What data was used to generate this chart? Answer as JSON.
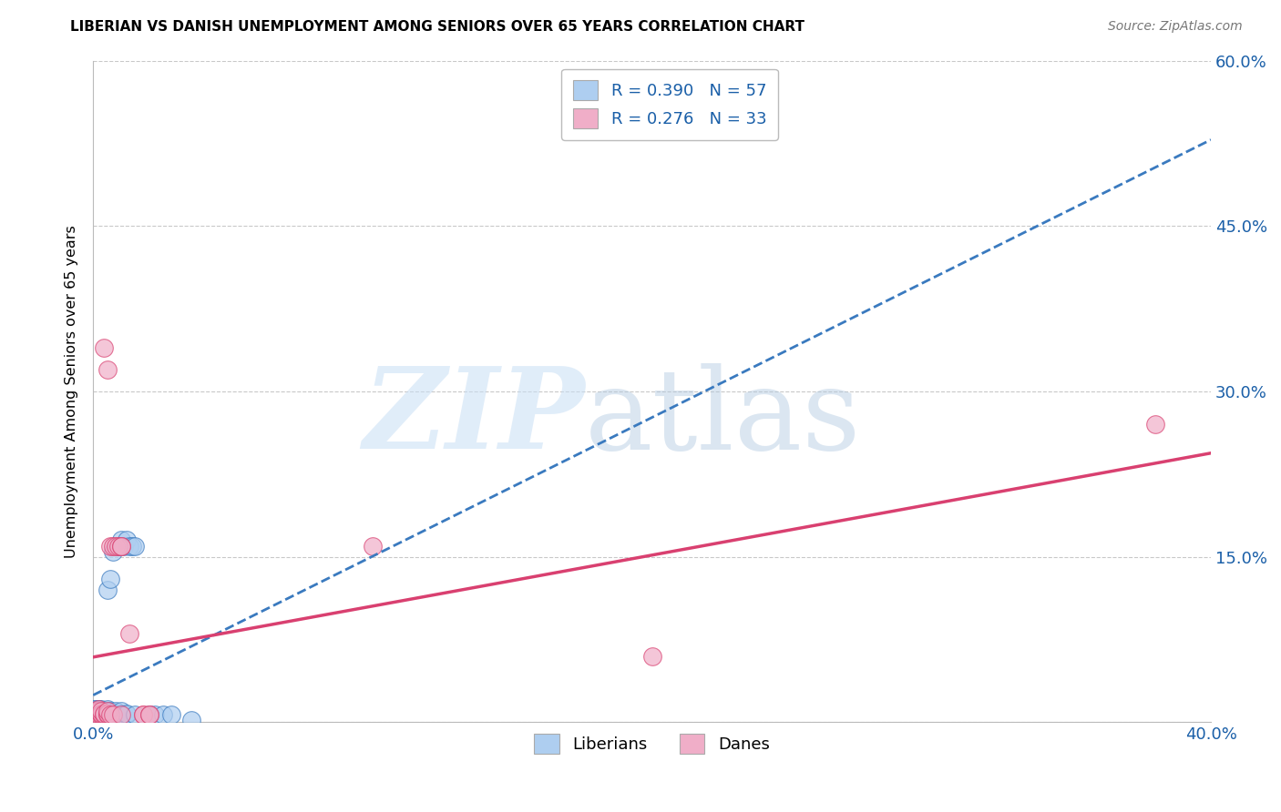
{
  "title": "LIBERIAN VS DANISH UNEMPLOYMENT AMONG SENIORS OVER 65 YEARS CORRELATION CHART",
  "source": "Source: ZipAtlas.com",
  "ylabel": "Unemployment Among Seniors over 65 years",
  "xlim": [
    0.0,
    0.4
  ],
  "ylim": [
    0.0,
    0.6
  ],
  "ytick_positions": [
    0.0,
    0.15,
    0.3,
    0.45,
    0.6
  ],
  "xtick_positions": [
    0.0,
    0.1,
    0.2,
    0.3,
    0.4
  ],
  "liberian_R": 0.39,
  "liberian_N": 57,
  "danish_R": 0.276,
  "danish_N": 33,
  "liberian_color": "#aecef0",
  "danish_color": "#f0aec8",
  "liberian_trend_color": "#3a7abf",
  "danish_trend_color": "#d94070",
  "liberian_points": [
    [
      0.0,
      0.01
    ],
    [
      0.0,
      0.01
    ],
    [
      0.0,
      0.012
    ],
    [
      0.001,
      0.008
    ],
    [
      0.001,
      0.01
    ],
    [
      0.001,
      0.01
    ],
    [
      0.001,
      0.012
    ],
    [
      0.002,
      0.007
    ],
    [
      0.002,
      0.008
    ],
    [
      0.002,
      0.01
    ],
    [
      0.002,
      0.01
    ],
    [
      0.002,
      0.01
    ],
    [
      0.002,
      0.012
    ],
    [
      0.002,
      0.012
    ],
    [
      0.003,
      0.007
    ],
    [
      0.003,
      0.008
    ],
    [
      0.003,
      0.008
    ],
    [
      0.003,
      0.01
    ],
    [
      0.003,
      0.01
    ],
    [
      0.003,
      0.012
    ],
    [
      0.004,
      0.007
    ],
    [
      0.004,
      0.008
    ],
    [
      0.004,
      0.01
    ],
    [
      0.004,
      0.01
    ],
    [
      0.005,
      0.007
    ],
    [
      0.005,
      0.008
    ],
    [
      0.005,
      0.01
    ],
    [
      0.005,
      0.012
    ],
    [
      0.005,
      0.12
    ],
    [
      0.006,
      0.007
    ],
    [
      0.006,
      0.008
    ],
    [
      0.006,
      0.01
    ],
    [
      0.006,
      0.13
    ],
    [
      0.007,
      0.007
    ],
    [
      0.007,
      0.155
    ],
    [
      0.008,
      0.007
    ],
    [
      0.008,
      0.008
    ],
    [
      0.008,
      0.01
    ],
    [
      0.009,
      0.16
    ],
    [
      0.01,
      0.007
    ],
    [
      0.01,
      0.008
    ],
    [
      0.01,
      0.01
    ],
    [
      0.01,
      0.165
    ],
    [
      0.011,
      0.007
    ],
    [
      0.011,
      0.16
    ],
    [
      0.012,
      0.007
    ],
    [
      0.012,
      0.008
    ],
    [
      0.012,
      0.165
    ],
    [
      0.013,
      0.16
    ],
    [
      0.014,
      0.16
    ],
    [
      0.015,
      0.007
    ],
    [
      0.015,
      0.16
    ],
    [
      0.02,
      0.007
    ],
    [
      0.022,
      0.007
    ],
    [
      0.025,
      0.007
    ],
    [
      0.028,
      0.007
    ],
    [
      0.035,
      0.002
    ]
  ],
  "danish_points": [
    [
      0.0,
      0.008
    ],
    [
      0.001,
      0.008
    ],
    [
      0.001,
      0.01
    ],
    [
      0.002,
      0.008
    ],
    [
      0.002,
      0.01
    ],
    [
      0.002,
      0.012
    ],
    [
      0.003,
      0.007
    ],
    [
      0.003,
      0.008
    ],
    [
      0.003,
      0.01
    ],
    [
      0.004,
      0.007
    ],
    [
      0.004,
      0.008
    ],
    [
      0.004,
      0.34
    ],
    [
      0.005,
      0.007
    ],
    [
      0.005,
      0.008
    ],
    [
      0.005,
      0.01
    ],
    [
      0.005,
      0.32
    ],
    [
      0.006,
      0.007
    ],
    [
      0.006,
      0.16
    ],
    [
      0.007,
      0.007
    ],
    [
      0.007,
      0.16
    ],
    [
      0.008,
      0.16
    ],
    [
      0.009,
      0.16
    ],
    [
      0.01,
      0.007
    ],
    [
      0.01,
      0.16
    ],
    [
      0.01,
      0.16
    ],
    [
      0.013,
      0.08
    ],
    [
      0.018,
      0.007
    ],
    [
      0.018,
      0.007
    ],
    [
      0.02,
      0.007
    ],
    [
      0.02,
      0.007
    ],
    [
      0.1,
      0.16
    ],
    [
      0.2,
      0.06
    ],
    [
      0.38,
      0.27
    ]
  ]
}
